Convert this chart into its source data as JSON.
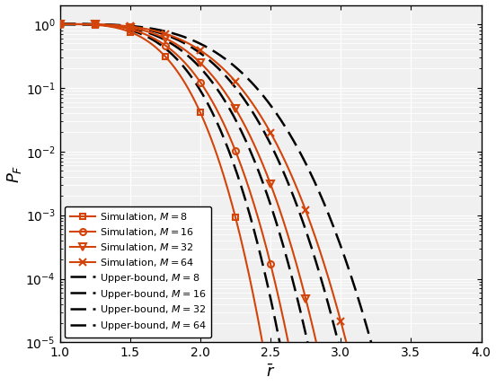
{
  "title": "",
  "xlabel": "$\\bar{r}$",
  "ylabel": "$P_F$",
  "xlim": [
    1.0,
    4.0
  ],
  "ylim": [
    1e-05,
    2.0
  ],
  "xticks": [
    1.0,
    1.5,
    2.0,
    2.5,
    3.0,
    3.5,
    4.0
  ],
  "orange_color": "#D2440A",
  "black_color": "#000000",
  "M_values": [
    8,
    16,
    32,
    64
  ],
  "sim_markers": [
    "s",
    "o",
    "v",
    "x"
  ],
  "marker_size": [
    5,
    5,
    6,
    6
  ],
  "legend_sim_labels": [
    "Simulation, $M = 8$",
    "Simulation, $M = 16$",
    "Simulation, $M = 32$",
    "Simulation, $M = 64$"
  ],
  "legend_ub_labels": [
    "Upper-bound, $M = 8$",
    "Upper-bound, $M = 16$",
    "Upper-bound, $M = 32$",
    "Upper-bound, $M = 64$"
  ],
  "bg_color": "#f0f0f0",
  "grid_color": "#ffffff",
  "sim_alpha_vals": [
    3.2,
    2.1,
    1.4,
    0.95
  ],
  "sim_beta_vals": [
    3.5,
    3.5,
    3.5,
    3.5
  ],
  "ub_alpha_vals": [
    2.4,
    1.58,
    1.05,
    0.71
  ],
  "ub_beta_vals": [
    3.5,
    3.5,
    3.5,
    3.5
  ]
}
